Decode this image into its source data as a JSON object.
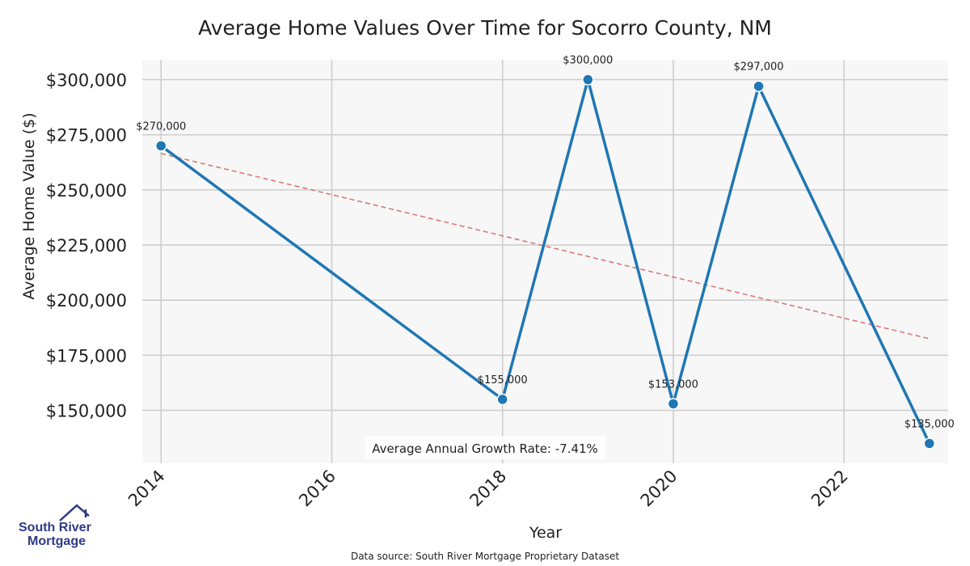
{
  "chart_data": {
    "type": "line",
    "title": "Average Home Values Over Time for Socorro County, NM",
    "xlabel": "Year",
    "ylabel": "Average Home Value ($)",
    "x": [
      2014,
      2018,
      2019,
      2020,
      2021,
      2023
    ],
    "values": [
      270000,
      155000,
      300000,
      153000,
      297000,
      135000
    ],
    "point_labels": [
      "$270,000",
      "$155,000",
      "$300,000",
      "$153,000",
      "$297,000",
      "$135,000"
    ],
    "xlim": [
      2013.78,
      2023.22
    ],
    "ylim": [
      126000,
      309000
    ],
    "xticks": [
      2014,
      2016,
      2018,
      2020,
      2022
    ],
    "xtick_labels": [
      "2014",
      "2016",
      "2018",
      "2020",
      "2022"
    ],
    "yticks": [
      150000,
      175000,
      200000,
      225000,
      250000,
      275000,
      300000
    ],
    "ytick_labels": [
      "$150,000",
      "$175,000",
      "$200,000",
      "$225,000",
      "$250,000",
      "$275,000",
      "$300,000"
    ],
    "trendline": {
      "x": [
        2014,
        2023
      ],
      "y": [
        266500,
        182500
      ]
    },
    "grid": true,
    "annotation": "Average Annual Growth Rate: -7.41%",
    "line_color": "#1f77b4",
    "trend_color": "#d9797a",
    "plot_bg": "#f7f7f7",
    "grid_color": "#cccccc"
  },
  "footer": {
    "source": "Data source: South River Mortgage Proprietary Dataset",
    "logo_line1": "South River",
    "logo_line2": "Mortgage",
    "logo_color": "#2e3b85"
  }
}
